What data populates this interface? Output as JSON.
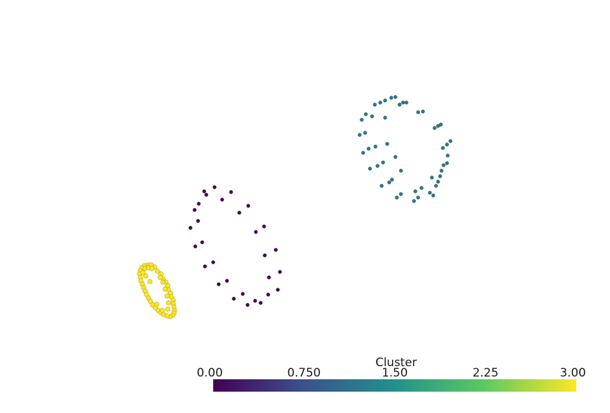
{
  "chart_data": {
    "type": "scatter",
    "colormap": "viridis",
    "colorbar": {
      "title": "Cluster",
      "range": [
        0,
        3
      ],
      "tick_labels": [
        "0.00",
        "0.750",
        "1.50",
        "2.25",
        "3.00"
      ],
      "tick_values": [
        0,
        0.75,
        1.5,
        2.25,
        3.0
      ],
      "stops": [
        "#440154",
        "#3b528b",
        "#21918c",
        "#5ec962",
        "#fde725"
      ]
    },
    "grid": false,
    "series": [
      {
        "cluster": 0,
        "color": "#440154",
        "points": [
          [
            297,
            278
          ],
          [
            312,
            272
          ],
          [
            336,
            279
          ],
          [
            300,
            283
          ],
          [
            323,
            290
          ],
          [
            289,
            296
          ],
          [
            283,
            305
          ],
          [
            348,
            309
          ],
          [
            361,
            299
          ],
          [
            277,
            331
          ],
          [
            288,
            321
          ],
          [
            384,
            329
          ],
          [
            372,
            337
          ],
          [
            294,
            352
          ],
          [
            284,
            358
          ],
          [
            401,
            363
          ],
          [
            385,
            371
          ],
          [
            310,
            381
          ],
          [
            298,
            387
          ],
          [
            407,
            395
          ],
          [
            391,
            403
          ],
          [
            330,
            408
          ],
          [
            318,
            413
          ],
          [
            404,
            421
          ],
          [
            390,
            428
          ],
          [
            353,
            427
          ],
          [
            340,
            434
          ],
          [
            371,
            437
          ],
          [
            379,
            440
          ],
          [
            360,
            443
          ]
        ]
      },
      {
        "cluster": 1,
        "color": "#2a788e",
        "points": [
          [
            569,
            142
          ],
          [
            575,
            141
          ],
          [
            545,
            152
          ],
          [
            553,
            149
          ],
          [
            560,
            146
          ],
          [
            581,
            152
          ],
          [
            586,
            149
          ],
          [
            591,
            149
          ],
          [
            532,
            166
          ],
          [
            541,
            169
          ],
          [
            560,
            171
          ],
          [
            608,
            163
          ],
          [
            615,
            162
          ],
          [
            526,
            174
          ],
          [
            632,
            186
          ],
          [
            637,
            183
          ],
          [
            641,
            181
          ],
          [
            523,
            196
          ],
          [
            531,
            193
          ],
          [
            650,
            210
          ],
          [
            655,
            205
          ],
          [
            644,
            215
          ],
          [
            528,
            222
          ],
          [
            536,
            216
          ],
          [
            546,
            213
          ],
          [
            563,
            209
          ],
          [
            651,
            226
          ],
          [
            575,
            228
          ],
          [
            645,
            240
          ],
          [
            650,
            237
          ],
          [
            538,
            245
          ],
          [
            549,
            241
          ],
          [
            557,
            236
          ],
          [
            583,
            248
          ],
          [
            642,
            248
          ],
          [
            640,
            256
          ],
          [
            628,
            258
          ],
          [
            637,
            264
          ],
          [
            634,
            270
          ],
          [
            555,
            270
          ],
          [
            566,
            265
          ],
          [
            570,
            261
          ],
          [
            613,
            273
          ],
          [
            604,
            278
          ],
          [
            625,
            280
          ],
          [
            583,
            282
          ],
          [
            577,
            287
          ],
          [
            608,
            287
          ],
          [
            602,
            292
          ],
          [
            630,
            284
          ]
        ]
      },
      {
        "cluster": 3,
        "color": "#fde725",
        "points": [
          [
            215,
            385
          ],
          [
            210,
            386
          ],
          [
            220,
            385
          ],
          [
            206,
            389
          ],
          [
            225,
            388
          ],
          [
            204,
            393
          ],
          [
            229,
            394
          ],
          [
            203,
            398
          ],
          [
            234,
            398
          ],
          [
            204,
            403
          ],
          [
            237,
            405
          ],
          [
            205,
            408
          ],
          [
            241,
            410
          ],
          [
            207,
            413
          ],
          [
            244,
            415
          ],
          [
            209,
            418
          ],
          [
            245,
            421
          ],
          [
            211,
            423
          ],
          [
            248,
            426
          ],
          [
            213,
            428
          ],
          [
            249,
            431
          ],
          [
            216,
            433
          ],
          [
            252,
            436
          ],
          [
            219,
            438
          ],
          [
            252,
            441
          ],
          [
            222,
            443
          ],
          [
            253,
            446
          ],
          [
            226,
            447
          ],
          [
            254,
            451
          ],
          [
            230,
            451
          ],
          [
            253,
            455
          ],
          [
            234,
            454
          ],
          [
            251,
            458
          ],
          [
            238,
            457
          ],
          [
            247,
            460
          ],
          [
            243,
            459
          ],
          [
            211,
            390
          ],
          [
            216,
            389
          ],
          [
            221,
            390
          ],
          [
            208,
            396
          ],
          [
            212,
            401
          ],
          [
            233,
            403
          ],
          [
            237,
            410
          ],
          [
            240,
            420
          ],
          [
            243,
            430
          ],
          [
            245,
            440
          ],
          [
            244,
            449
          ],
          [
            236,
            451
          ],
          [
            218,
            409
          ],
          [
            228,
            442
          ]
        ]
      }
    ]
  }
}
